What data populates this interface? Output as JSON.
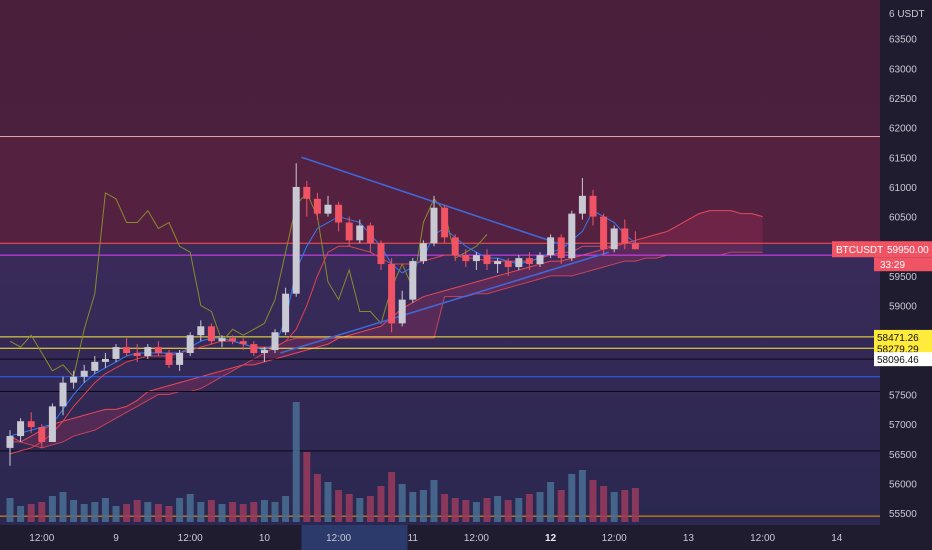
{
  "chart_data": {
    "type": "candlestick",
    "symbol": "BTCUSDT",
    "price_axis": {
      "unit_label": "6 USDT",
      "ticks": [
        63500,
        63000,
        62500,
        62000,
        61500,
        61000,
        60500,
        59500,
        59000,
        57500,
        57000,
        56500,
        56000,
        55500
      ],
      "ylim": [
        55300,
        63950
      ]
    },
    "time_axis": {
      "labels": [
        {
          "text": "12:00",
          "bold": false,
          "i": 3
        },
        {
          "text": "9",
          "bold": false,
          "i": 10
        },
        {
          "text": "12:00",
          "bold": false,
          "i": 17
        },
        {
          "text": "10",
          "bold": false,
          "i": 24
        },
        {
          "text": "12:00",
          "bold": false,
          "i": 31
        },
        {
          "text": "11",
          "bold": false,
          "i": 38
        },
        {
          "text": "12:00",
          "bold": false,
          "i": 44
        },
        {
          "text": "12",
          "bold": true,
          "i": 51
        },
        {
          "text": "12:00",
          "bold": false,
          "i": 57
        },
        {
          "text": "13",
          "bold": false,
          "i": 64
        },
        {
          "text": "12:00",
          "bold": false,
          "i": 71
        },
        {
          "text": "14",
          "bold": false,
          "i": 78
        }
      ],
      "highlight_range": [
        27.5,
        37.5
      ]
    },
    "last_price": {
      "label": "BTCUSDT",
      "value": "59950.00",
      "countdown": "33:29",
      "price": 59950
    },
    "price_tags": [
      {
        "value": "58471.26",
        "price": 58471.26,
        "color": "#ffeb3b"
      },
      {
        "value": "58279.29",
        "price": 58279.29,
        "color": "#ffeb3b"
      },
      {
        "value": "58096.46",
        "price": 58096.46,
        "color": "#ffffff"
      }
    ],
    "candles": [
      [
        56600,
        56900,
        56300,
        56800
      ],
      [
        56800,
        57100,
        56700,
        57050
      ],
      [
        57050,
        57200,
        56850,
        56950
      ],
      [
        56950,
        57000,
        56600,
        56700
      ],
      [
        56700,
        57350,
        56700,
        57300
      ],
      [
        57300,
        57800,
        57150,
        57700
      ],
      [
        57700,
        57900,
        57600,
        57800
      ],
      [
        57800,
        58000,
        57700,
        57900
      ],
      [
        57900,
        58150,
        57850,
        58050
      ],
      [
        58050,
        58200,
        57950,
        58100
      ],
      [
        58100,
        58350,
        58050,
        58300
      ],
      [
        58300,
        58450,
        58150,
        58200
      ],
      [
        58200,
        58350,
        58050,
        58150
      ],
      [
        58150,
        58350,
        58100,
        58300
      ],
      [
        58300,
        58400,
        58150,
        58200
      ],
      [
        58200,
        58250,
        57950,
        58000
      ],
      [
        58000,
        58250,
        57900,
        58200
      ],
      [
        58200,
        58550,
        58150,
        58500
      ],
      [
        58500,
        58750,
        58400,
        58650
      ],
      [
        58650,
        58700,
        58350,
        58400
      ],
      [
        58400,
        58500,
        58300,
        58450
      ],
      [
        58450,
        58500,
        58350,
        58400
      ],
      [
        58400,
        58450,
        58250,
        58350
      ],
      [
        58350,
        58400,
        58150,
        58200
      ],
      [
        58200,
        58300,
        58050,
        58250
      ],
      [
        58250,
        58600,
        58200,
        58550
      ],
      [
        58550,
        59300,
        58500,
        59200
      ],
      [
        59200,
        61400,
        59150,
        61000
      ],
      [
        61000,
        61100,
        60500,
        60800
      ],
      [
        60800,
        60900,
        60450,
        60550
      ],
      [
        60550,
        60850,
        60500,
        60700
      ],
      [
        60700,
        60750,
        60250,
        60400
      ],
      [
        60400,
        60500,
        60000,
        60100
      ],
      [
        60100,
        60450,
        60050,
        60350
      ],
      [
        60350,
        60400,
        59900,
        60050
      ],
      [
        60050,
        60100,
        59600,
        59700
      ],
      [
        59700,
        59800,
        58550,
        58700
      ],
      [
        58700,
        59250,
        58650,
        59100
      ],
      [
        59100,
        59800,
        59050,
        59750
      ],
      [
        59750,
        60100,
        59700,
        60050
      ],
      [
        60050,
        60850,
        60000,
        60650
      ],
      [
        60650,
        60700,
        60050,
        60150
      ],
      [
        60150,
        60200,
        59750,
        59850
      ],
      [
        59850,
        59950,
        59650,
        59750
      ],
      [
        59750,
        59900,
        59600,
        59850
      ],
      [
        59850,
        59950,
        59600,
        59700
      ],
      [
        59700,
        59800,
        59550,
        59750
      ],
      [
        59750,
        59800,
        59500,
        59650
      ],
      [
        59650,
        59850,
        59600,
        59800
      ],
      [
        59800,
        59900,
        59600,
        59700
      ],
      [
        59700,
        59900,
        59650,
        59850
      ],
      [
        59850,
        60200,
        59800,
        60150
      ],
      [
        60150,
        60200,
        59700,
        59800
      ],
      [
        59800,
        60600,
        59750,
        60550
      ],
      [
        60550,
        61150,
        60450,
        60850
      ],
      [
        60850,
        60950,
        60350,
        60500
      ],
      [
        60500,
        60550,
        59850,
        59950
      ],
      [
        59950,
        60350,
        59900,
        60300
      ],
      [
        60300,
        60450,
        59950,
        60050
      ],
      [
        60050,
        60250,
        59950,
        59950
      ]
    ],
    "volumes": [
      1.2,
      0.8,
      0.9,
      1.0,
      1.3,
      1.5,
      1.1,
      0.9,
      1.0,
      1.2,
      0.8,
      0.9,
      1.1,
      1.0,
      0.9,
      0.8,
      1.2,
      1.4,
      1.0,
      1.1,
      0.9,
      1.0,
      0.9,
      1.0,
      1.1,
      1.0,
      1.3,
      6.0,
      3.5,
      2.4,
      2.0,
      1.6,
      1.4,
      1.2,
      1.3,
      1.8,
      2.5,
      1.9,
      1.5,
      1.6,
      2.1,
      1.4,
      1.2,
      1.1,
      1.0,
      1.2,
      1.3,
      1.1,
      1.2,
      1.4,
      1.5,
      2.0,
      1.6,
      2.4,
      2.6,
      2.1,
      1.8,
      1.5,
      1.6,
      1.7
    ],
    "lines": {
      "conversion": [
        56800,
        56850,
        56900,
        56950,
        57000,
        57250,
        57500,
        57700,
        57850,
        57950,
        58050,
        58150,
        58200,
        58200,
        58200,
        58200,
        58200,
        58300,
        58400,
        58450,
        58450,
        58400,
        58350,
        58300,
        58250,
        58350,
        58750,
        59600,
        60000,
        60300,
        60400,
        60500,
        60450,
        60400,
        60200,
        60000,
        59700,
        59550,
        59650,
        59800,
        60200,
        60300,
        60150,
        60000,
        59900,
        59800,
        59800,
        59750,
        59700,
        59750,
        59800,
        59900,
        59950,
        60100,
        60250,
        60600,
        60500,
        60400,
        60200,
        60050
      ],
      "base": [
        56500,
        56550,
        56600,
        56700,
        56850,
        57050,
        57300,
        57500,
        57700,
        57850,
        57950,
        58050,
        58100,
        58150,
        58150,
        58150,
        58200,
        58250,
        58300,
        58350,
        58400,
        58400,
        58350,
        58300,
        58300,
        58300,
        58400,
        58600,
        59000,
        59500,
        59900,
        60000,
        60000,
        59950,
        59900,
        59800,
        59700,
        59700,
        59700,
        59750,
        59800,
        59850,
        59850,
        59800,
        59800,
        59750,
        59750,
        59750,
        59750,
        59750,
        59800,
        59850,
        59900,
        59900,
        60000,
        60000,
        60000,
        60000,
        60050,
        60050
      ],
      "lagging": [
        58400,
        58300,
        58500,
        58200,
        57900,
        58000,
        57800,
        58600,
        59200,
        60900,
        60800,
        60400,
        60400,
        60600,
        60300,
        60400,
        60000,
        59900,
        59000,
        58900,
        58400,
        58600,
        58500,
        58600,
        58700,
        59100,
        59900,
        60700,
        60900,
        60500,
        59400,
        59100,
        59600,
        58900,
        58900,
        58700,
        59300,
        59700,
        59300,
        60400,
        60800,
        60600,
        59800,
        59900,
        60000,
        60200
      ]
    },
    "cloud": {
      "span_a": [
        56800,
        56700,
        56800,
        56900,
        57000,
        57050,
        57100,
        57150,
        57200,
        57250,
        57250,
        57300,
        57400,
        57550,
        57600,
        57650,
        57700,
        57750,
        57800,
        57850,
        57900,
        57950,
        58000,
        58000,
        58050,
        58100,
        58150,
        58200,
        58250,
        58300,
        58350,
        58450,
        58500,
        58550,
        58600,
        58650,
        58800,
        58950,
        59050,
        59150,
        59200,
        59250,
        59300,
        59350,
        59400,
        59450,
        59500,
        59550,
        59600,
        59650,
        59700,
        59750,
        59750,
        59800,
        59850,
        59900,
        59950,
        60000,
        60050,
        60100,
        60150,
        60200,
        60250,
        60350,
        60450,
        60550,
        60600,
        60600,
        60600,
        60550,
        60550,
        60500
      ],
      "span_b": [
        56700,
        56700,
        56650,
        56600,
        56650,
        56700,
        56800,
        56850,
        56900,
        57000,
        57100,
        57200,
        57300,
        57400,
        57500,
        57500,
        57550,
        57550,
        57600,
        57700,
        57800,
        57900,
        58000,
        58100,
        58200,
        58300,
        58400,
        58450,
        58450,
        58450,
        58450,
        58450,
        58450,
        58450,
        58450,
        58450,
        58450,
        58450,
        58450,
        58450,
        58450,
        59150,
        59150,
        59150,
        59200,
        59200,
        59250,
        59300,
        59350,
        59400,
        59450,
        59500,
        59500,
        59500,
        59550,
        59600,
        59650,
        59700,
        59750,
        59750,
        59800,
        59800,
        59850,
        59850,
        59850,
        59850,
        59850,
        59850,
        59900,
        59900,
        59900,
        59900
      ]
    },
    "trendlines": [
      {
        "from": [
          27.5,
          61500
        ],
        "to": [
          52.5,
          60000
        ]
      },
      {
        "from": [
          25.5,
          58200
        ],
        "to": [
          56.5,
          59900
        ]
      }
    ],
    "horizontal_lines": [
      {
        "price": 61850,
        "color": "#e0a3a3"
      },
      {
        "price": 60050,
        "color": "#ff5252"
      },
      {
        "price": 59850,
        "color": "#e040fb"
      },
      {
        "price": 58471.26,
        "color": "#ffeb3b"
      },
      {
        "price": 58279.29,
        "color": "#ffeb3b"
      },
      {
        "price": 58096.46,
        "color": "#0a0a14"
      },
      {
        "price": 57800,
        "color": "#2962ff"
      },
      {
        "price": 57550,
        "color": "#0a0a14"
      },
      {
        "price": 56550,
        "color": "#0a0a14"
      },
      {
        "price": 55450,
        "color": "#ff9800"
      }
    ],
    "grid": false
  },
  "colors": {
    "bull": "#c9c9d4",
    "bear": "#f05464",
    "conversion": "#2f7cf6",
    "base": "#e0424f",
    "lagging": "#8a8a2a",
    "trendline": "#3f67d8"
  }
}
